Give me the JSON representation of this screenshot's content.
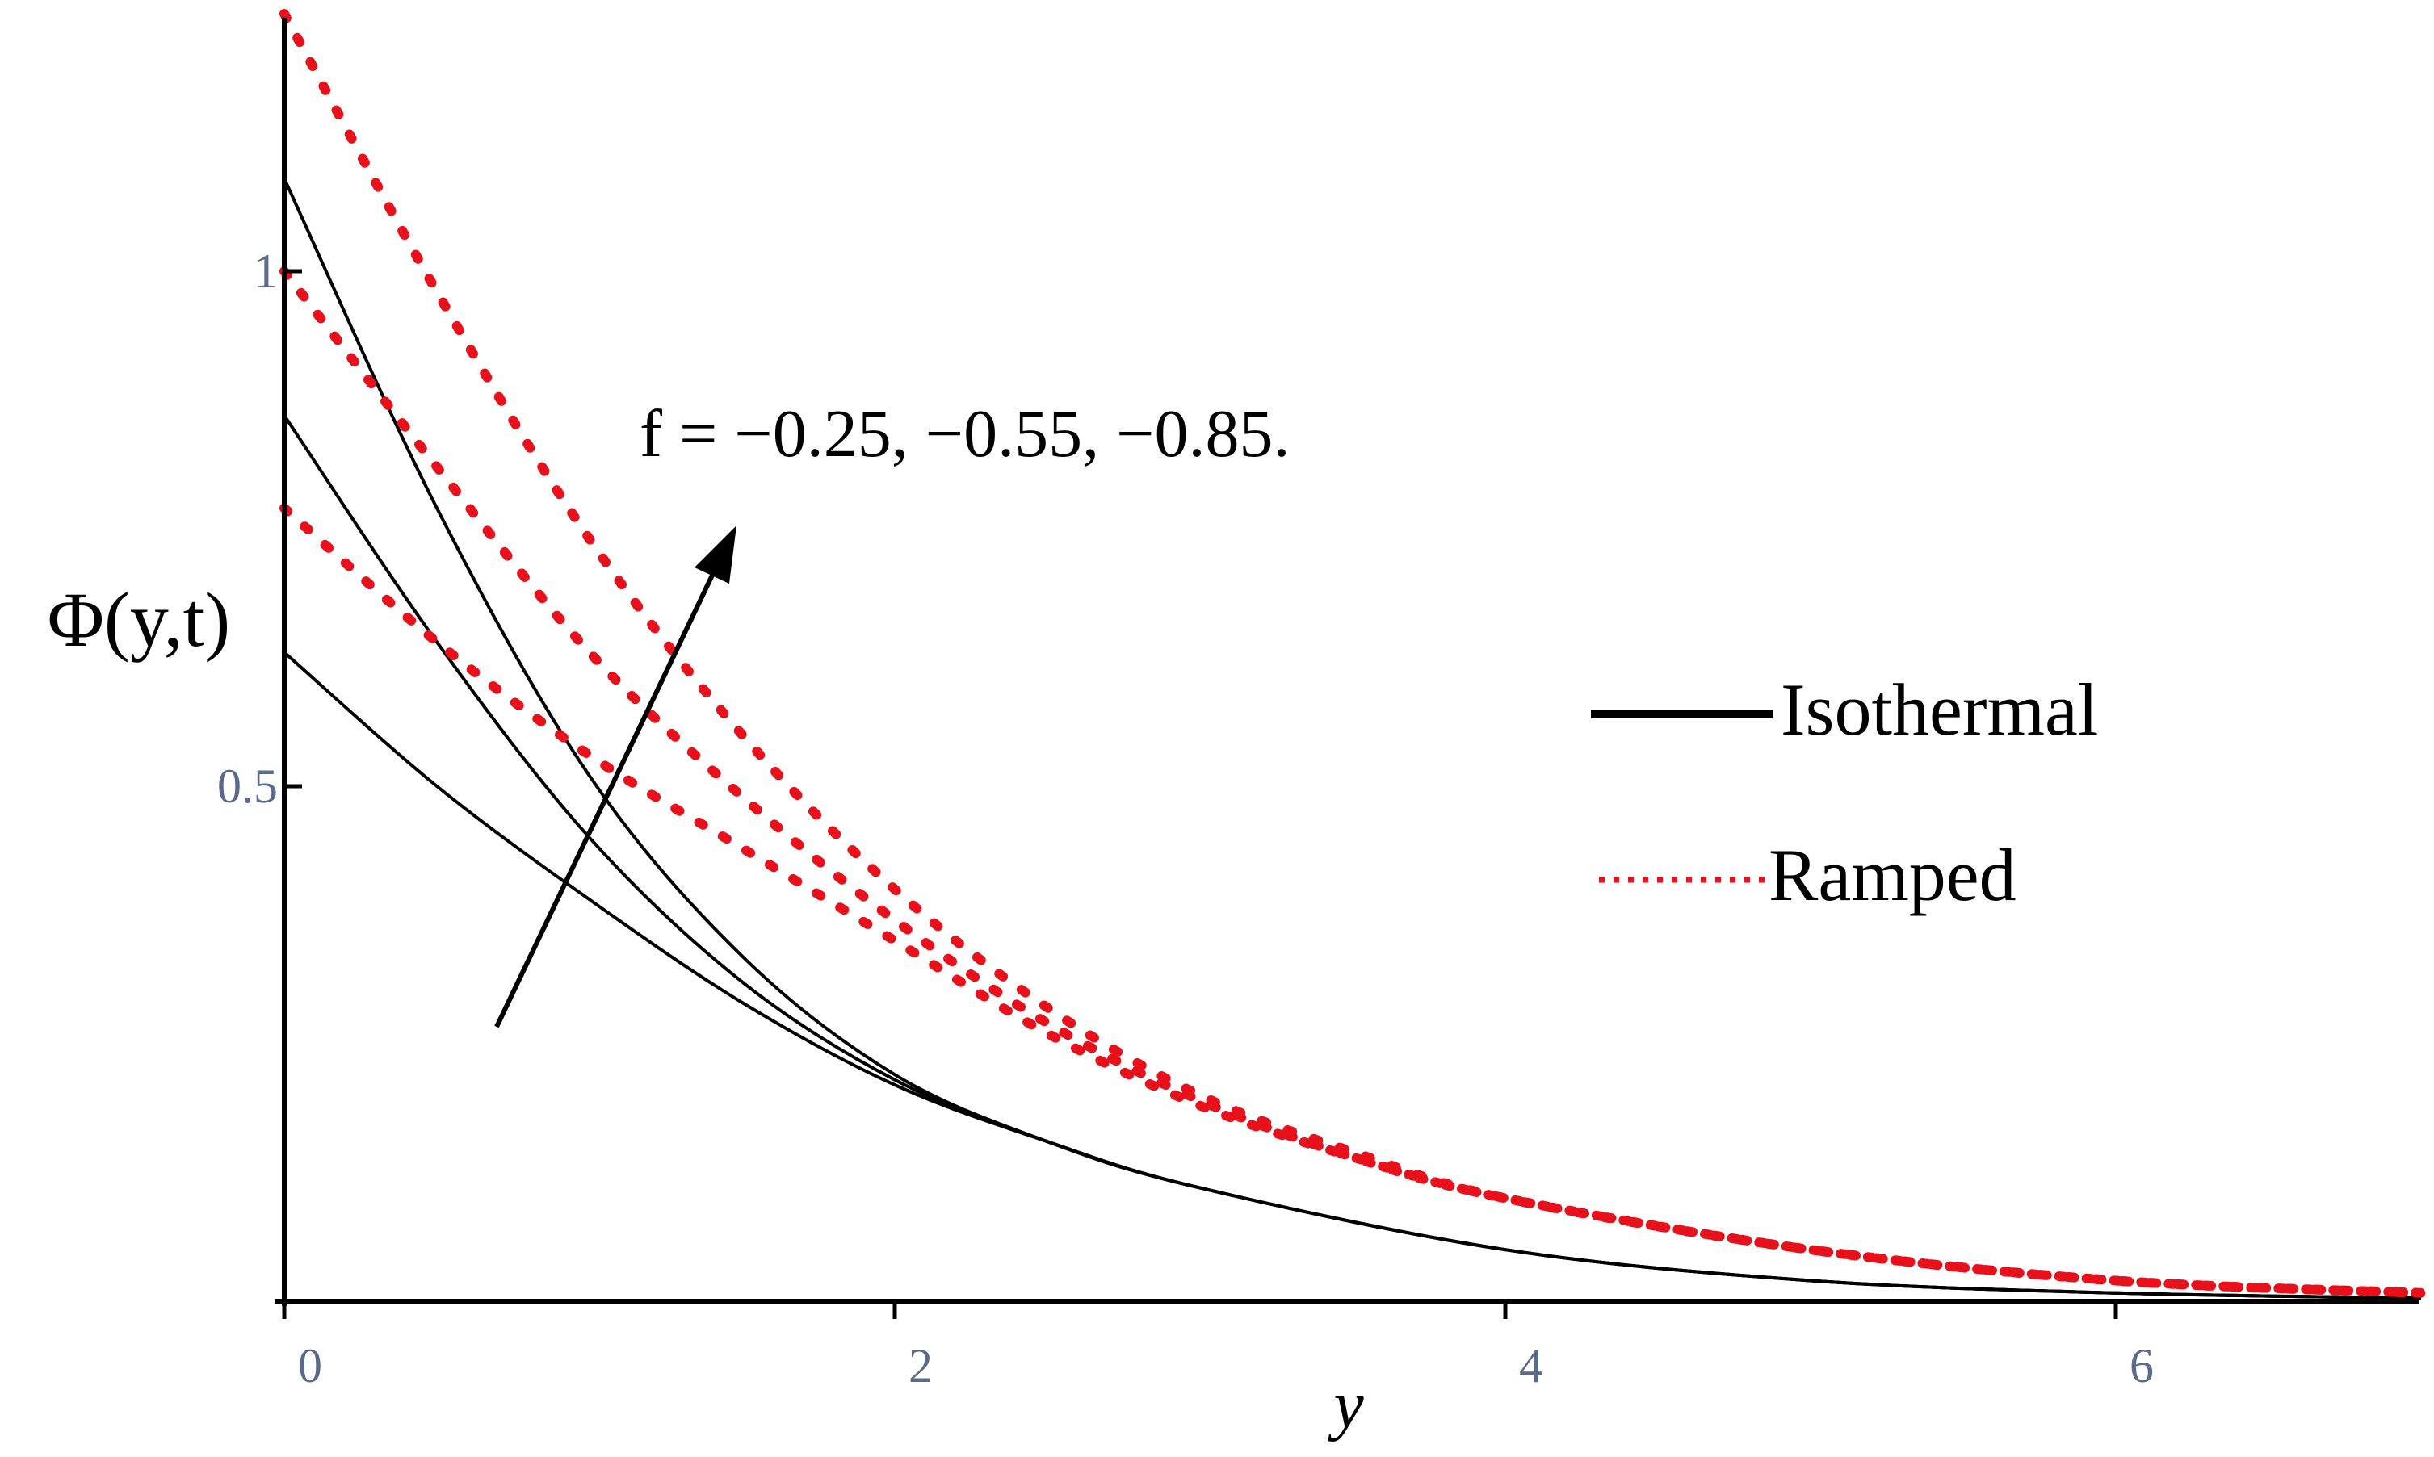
{
  "chart_data": {
    "type": "line",
    "xlabel": "y",
    "ylabel": "Φ(y,t)",
    "xlim": [
      0,
      7
    ],
    "ylim": [
      0,
      1.25
    ],
    "x_ticks": [
      "0",
      "2",
      "4",
      "6"
    ],
    "y_ticks": [
      "0.5",
      "1"
    ],
    "x_tick_values": [
      0,
      2,
      4,
      6
    ],
    "y_tick_values": [
      0.5,
      1
    ],
    "annotation": "f = −0.25, −0.55, −0.85.",
    "legend_position": "right",
    "series": [
      {
        "name": "Isothermal",
        "style": "solid",
        "color": "#000000",
        "x": [
          0,
          0.5,
          1,
          1.5,
          2,
          2.5,
          3,
          4,
          5,
          6,
          7
        ],
        "y": [
          0.63,
          0.5,
          0.39,
          0.29,
          0.21,
          0.155,
          0.11,
          0.05,
          0.02,
          0.008,
          0.003
        ]
      },
      {
        "style": "solid",
        "color": "#000000",
        "x": [
          0,
          0.5,
          1,
          1.5,
          2,
          2.5,
          3,
          4,
          5,
          6,
          7
        ],
        "y": [
          0.86,
          0.64,
          0.45,
          0.31,
          0.215,
          0.155,
          0.11,
          0.05,
          0.02,
          0.008,
          0.003
        ]
      },
      {
        "style": "solid",
        "color": "#000000",
        "x": [
          0,
          0.5,
          1,
          1.5,
          2,
          2.5,
          3,
          4,
          5,
          6,
          7
        ],
        "y": [
          1.09,
          0.77,
          0.51,
          0.335,
          0.22,
          0.155,
          0.11,
          0.05,
          0.02,
          0.008,
          0.003
        ]
      },
      {
        "name": "Ramped",
        "style": "dotted",
        "color": "#e8101a",
        "x": [
          0,
          0.5,
          1,
          1.5,
          2,
          2.5,
          3,
          3.5,
          4,
          5,
          6,
          7
        ],
        "y": [
          0.77,
          0.64,
          0.53,
          0.44,
          0.35,
          0.26,
          0.19,
          0.14,
          0.1,
          0.05,
          0.02,
          0.008
        ]
      },
      {
        "style": "dotted",
        "color": "#e8101a",
        "x": [
          0,
          0.5,
          1,
          1.5,
          2,
          2.5,
          3,
          3.5,
          4,
          5,
          6,
          7
        ],
        "y": [
          1.0,
          0.81,
          0.63,
          0.49,
          0.37,
          0.27,
          0.195,
          0.14,
          0.1,
          0.05,
          0.02,
          0.008
        ]
      },
      {
        "style": "dotted",
        "color": "#e8101a",
        "x": [
          0,
          0.5,
          1,
          1.5,
          2,
          2.5,
          3,
          3.5,
          4,
          5,
          6,
          7
        ],
        "y": [
          1.25,
          0.98,
          0.74,
          0.55,
          0.4,
          0.285,
          0.2,
          0.145,
          0.1,
          0.05,
          0.02,
          0.008
        ]
      }
    ],
    "legend": [
      {
        "label": "Isothermal",
        "style": "solid",
        "color": "#000000"
      },
      {
        "label": "Ramped",
        "style": "dotted",
        "color": "#e8101a"
      }
    ]
  }
}
